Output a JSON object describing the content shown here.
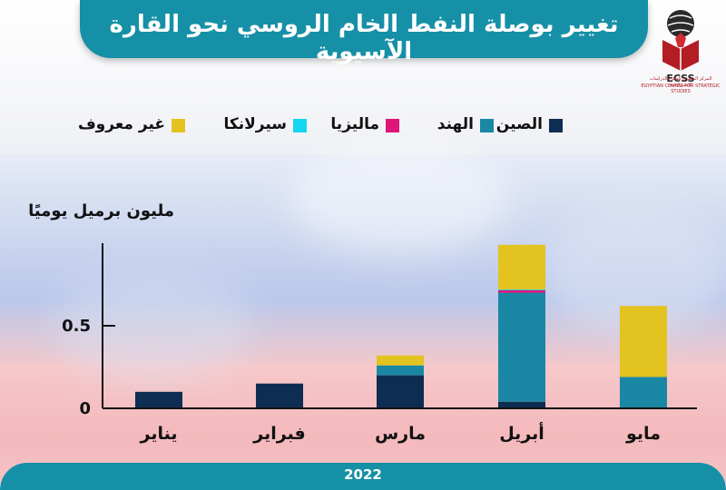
{
  "title": "تغيير بوصلة النفط الخام الروسي نحو القارة الآسيوية",
  "logo": {
    "abbr": "ECSS",
    "org_name_ar": "المركز المصري للفكر والدراسات الاستراتيجية",
    "org_name_en": "EGYPTIAN CENTER FOR STRATEGIC STUDIES"
  },
  "footer": {
    "year": "2022"
  },
  "colors": {
    "china": "#0e2d52",
    "india": "#1a87a4",
    "malaysia": "#e0157a",
    "srilanka": "#14d6ef",
    "unknown": "#e3c31f",
    "accent": "#1690a6"
  },
  "chart_data": {
    "type": "bar",
    "stacked": true,
    "ylabel": "مليون برميل يوميًا",
    "xlabel": "",
    "ylim": [
      0,
      1.0
    ],
    "yticks": [
      0,
      0.5
    ],
    "ytick_labels": [
      "0",
      "0.5"
    ],
    "categories": [
      "يناير",
      "فبراير",
      "مارس",
      "أبريل",
      "مايو"
    ],
    "series": [
      {
        "key": "china",
        "name": "الصين",
        "values": [
          0.1,
          0.15,
          0.2,
          0.04,
          0.0
        ]
      },
      {
        "key": "india",
        "name": "الهند",
        "values": [
          0.0,
          0.0,
          0.06,
          0.66,
          0.19
        ]
      },
      {
        "key": "malaysia",
        "name": "ماليزيا",
        "values": [
          0.0,
          0.0,
          0.0,
          0.015,
          0.0
        ]
      },
      {
        "key": "srilanka",
        "name": "سيرلانكا",
        "values": [
          0.0,
          0.0,
          0.0,
          0.005,
          0.0
        ]
      },
      {
        "key": "unknown",
        "name": "غير معروف",
        "values": [
          0.0,
          0.0,
          0.06,
          0.27,
          0.43
        ]
      }
    ],
    "legend_position": "top"
  }
}
